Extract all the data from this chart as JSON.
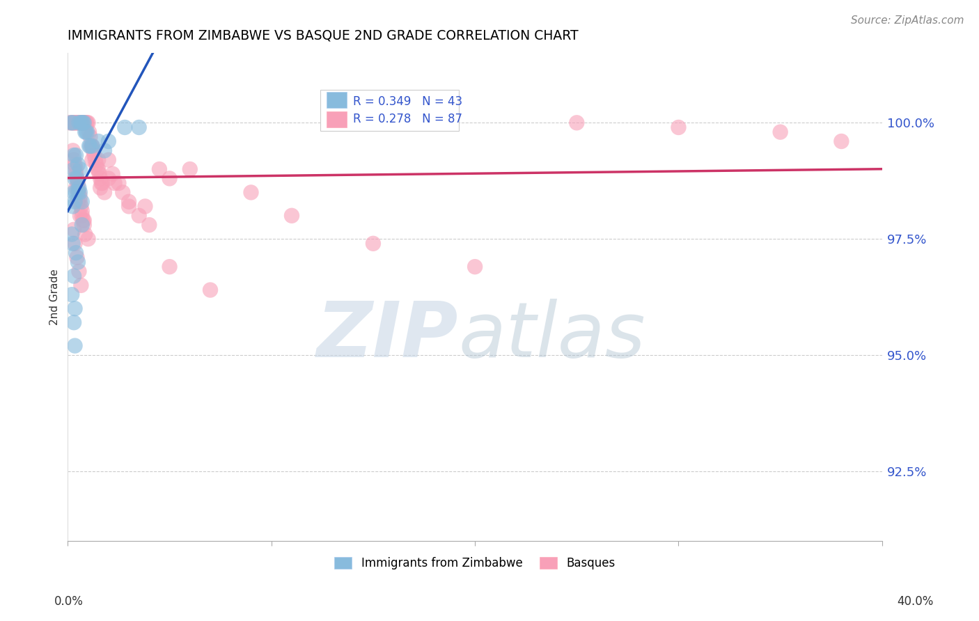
{
  "title": "IMMIGRANTS FROM ZIMBABWE VS BASQUE 2ND GRADE CORRELATION CHART",
  "source": "Source: ZipAtlas.com",
  "ylabel": "2nd Grade",
  "ytick_values": [
    92.5,
    95.0,
    97.5,
    100.0
  ],
  "xlim": [
    0.0,
    40.0
  ],
  "ylim": [
    91.0,
    101.5
  ],
  "legend_blue_label": "Immigrants from Zimbabwe",
  "legend_pink_label": "Basques",
  "R_blue": 0.349,
  "N_blue": 43,
  "R_pink": 0.278,
  "N_pink": 87,
  "blue_color": "#88bbdd",
  "pink_color": "#f8a0b8",
  "trend_blue": "#2255bb",
  "trend_pink": "#cc3366",
  "blue_points_x": [
    0.15,
    0.25,
    0.55,
    0.65,
    0.7,
    0.75,
    0.8,
    0.85,
    0.9,
    0.95,
    1.05,
    1.1,
    1.2,
    0.3,
    0.4,
    0.5,
    0.6,
    0.35,
    0.45,
    0.55,
    0.3,
    0.35,
    0.25,
    0.4,
    0.5,
    0.6,
    0.7,
    0.3,
    0.2,
    0.25,
    3.5,
    0.4,
    0.3,
    0.2,
    0.35,
    1.5,
    0.3,
    2.8,
    0.7,
    0.5,
    2.0,
    0.35,
    1.8
  ],
  "blue_points_y": [
    100.0,
    100.0,
    100.0,
    100.0,
    100.0,
    100.0,
    100.0,
    99.8,
    99.8,
    99.8,
    99.5,
    99.5,
    99.5,
    99.3,
    99.3,
    99.1,
    99.0,
    98.8,
    98.8,
    98.6,
    98.5,
    98.3,
    98.2,
    98.5,
    98.5,
    98.5,
    98.3,
    99.0,
    97.6,
    97.4,
    99.9,
    97.2,
    96.7,
    96.3,
    96.0,
    99.6,
    95.7,
    99.9,
    97.8,
    97.0,
    99.6,
    95.2,
    99.4
  ],
  "pink_points_x": [
    0.1,
    0.2,
    0.25,
    0.3,
    0.35,
    0.4,
    0.45,
    0.5,
    0.55,
    0.6,
    0.65,
    0.7,
    0.75,
    0.8,
    0.85,
    0.9,
    0.95,
    1.0,
    1.05,
    1.1,
    1.15,
    1.2,
    1.25,
    1.3,
    1.35,
    1.4,
    1.45,
    1.5,
    1.55,
    1.6,
    1.65,
    1.7,
    1.8,
    2.0,
    2.2,
    2.5,
    2.7,
    3.0,
    3.5,
    4.0,
    5.0,
    0.3,
    0.4,
    0.5,
    0.6,
    0.7,
    0.8,
    1.0,
    0.4,
    0.5,
    0.6,
    0.7,
    0.8,
    0.4,
    0.5,
    0.6,
    0.3,
    0.35,
    0.45,
    0.55,
    0.65,
    2.3,
    4.5,
    25.0,
    30.0,
    1.5,
    2.0,
    3.0,
    5.0,
    7.0,
    9.0,
    11.0,
    15.0,
    20.0,
    35.0,
    38.0,
    0.25,
    0.35,
    0.45,
    0.55,
    0.65,
    0.75,
    0.85,
    1.2,
    1.6,
    3.8,
    6.0
  ],
  "pink_points_y": [
    100.0,
    100.0,
    100.0,
    100.0,
    100.0,
    100.0,
    100.0,
    100.0,
    100.0,
    100.0,
    100.0,
    100.0,
    100.0,
    100.0,
    100.0,
    100.0,
    100.0,
    100.0,
    99.8,
    99.7,
    99.5,
    99.5,
    99.4,
    99.3,
    99.2,
    99.1,
    99.0,
    99.0,
    98.9,
    98.8,
    98.7,
    98.7,
    98.5,
    99.2,
    98.9,
    98.7,
    98.5,
    98.3,
    98.0,
    97.8,
    98.8,
    99.2,
    98.9,
    98.6,
    98.3,
    98.0,
    97.8,
    97.5,
    99.0,
    98.7,
    98.4,
    98.1,
    97.9,
    98.6,
    98.3,
    98.0,
    97.7,
    97.4,
    97.1,
    96.8,
    96.5,
    98.7,
    99.0,
    100.0,
    99.9,
    99.2,
    98.8,
    98.2,
    96.9,
    96.4,
    98.5,
    98.0,
    97.4,
    96.9,
    99.8,
    99.6,
    99.4,
    99.1,
    98.8,
    98.5,
    98.2,
    97.9,
    97.6,
    99.2,
    98.6,
    98.2,
    99.0
  ]
}
